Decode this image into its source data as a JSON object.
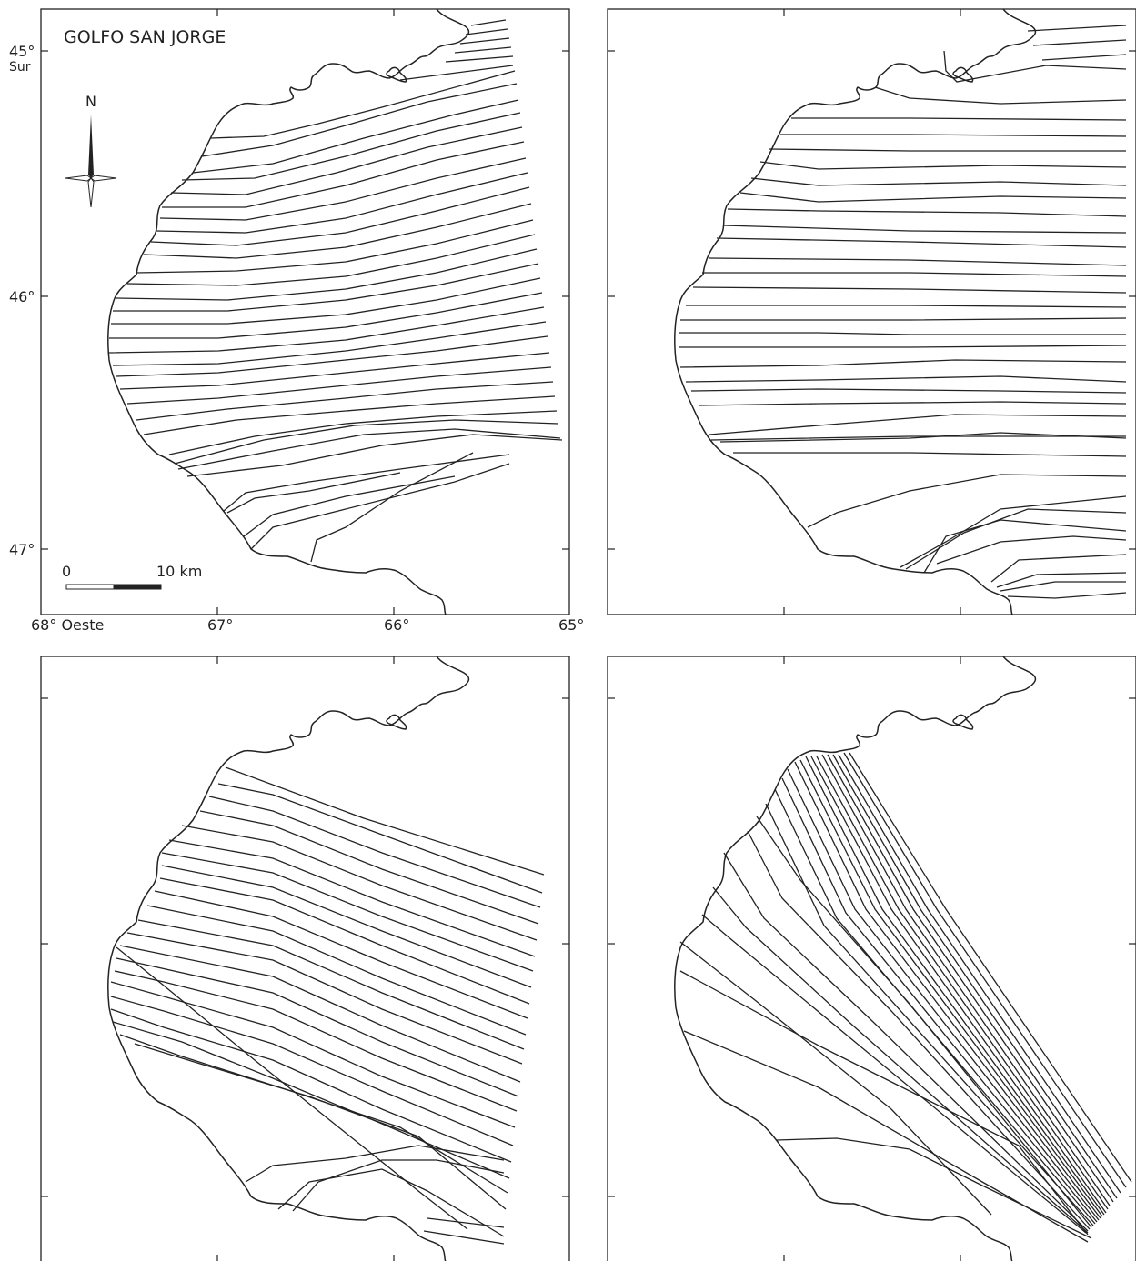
{
  "panel_a": {
    "title": "GOLFO SAN JORGE",
    "north_label": "N",
    "lat_labels": [
      "45°",
      "Sur",
      "46°",
      "47°"
    ],
    "lon_labels": [
      "68° Oeste",
      "67°",
      "66°",
      "65°"
    ],
    "scale_start": "0",
    "scale_end": "10 km"
  },
  "panels": [
    {
      "id": "panel-a",
      "description_icon": "north-arrow-icon"
    },
    {
      "id": "panel-b"
    },
    {
      "id": "panel-c"
    },
    {
      "id": "panel-d"
    }
  ],
  "colors": {
    "line": "#222222",
    "background": "#ffffff"
  }
}
